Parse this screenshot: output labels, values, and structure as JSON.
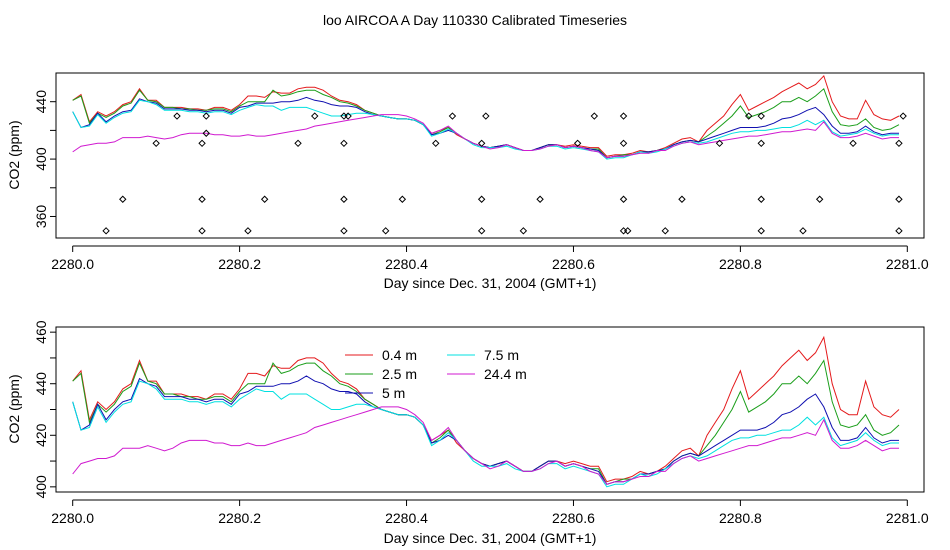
{
  "title": "loo AIRCOA A  Day 110330  Calibrated Timeseries",
  "chart_data": [
    {
      "type": "line+scatter",
      "xlabel": "Day since Dec. 31, 2004 (GMT+1)",
      "ylabel": "CO2 (ppm)",
      "xlim": [
        2279.98,
        2281.02
      ],
      "ylim": [
        345,
        460
      ],
      "x_ticks": [
        "2280.0",
        "2280.2",
        "2280.4",
        "2280.6",
        "2280.8",
        "2281.0"
      ],
      "y_ticks": [
        "360",
        "400",
        "440"
      ],
      "grid": false,
      "series_ref": "chart_data.1.series",
      "calibration_points": {
        "marker": "open-diamond",
        "x": [
          2280.04,
          2280.06,
          2280.1,
          2280.125,
          2280.155,
          2280.155,
          2280.155,
          2280.16,
          2280.16,
          2280.21,
          2280.23,
          2280.27,
          2280.29,
          2280.325,
          2280.325,
          2280.325,
          2280.325,
          2280.33,
          2280.375,
          2280.395,
          2280.435,
          2280.455,
          2280.49,
          2280.49,
          2280.49,
          2280.495,
          2280.54,
          2280.56,
          2280.605,
          2280.625,
          2280.66,
          2280.66,
          2280.66,
          2280.66,
          2280.665,
          2280.71,
          2280.73,
          2280.775,
          2280.81,
          2280.825,
          2280.825,
          2280.825,
          2280.825,
          2280.875,
          2280.895,
          2280.935,
          2280.99,
          2280.99,
          2280.99,
          2280.995
        ],
        "y": [
          350,
          372,
          411,
          430,
          350,
          372,
          411,
          430,
          418,
          350,
          372,
          411,
          430,
          350,
          372,
          411,
          430,
          430,
          350,
          372,
          411,
          430,
          350,
          372,
          411,
          430,
          350,
          372,
          411,
          430,
          350,
          372,
          411,
          430,
          350,
          350,
          372,
          411,
          430,
          350,
          372,
          411,
          430,
          350,
          372,
          411,
          350,
          372,
          411,
          430
        ]
      }
    },
    {
      "type": "line",
      "xlabel": "Day since Dec. 31, 2004 (GMT+1)",
      "ylabel": "CO2 (ppm)",
      "xlim": [
        2279.98,
        2281.02
      ],
      "ylim": [
        398,
        462
      ],
      "x_ticks": [
        "2280.0",
        "2280.2",
        "2280.4",
        "2280.6",
        "2280.8",
        "2281.0"
      ],
      "y_ticks": [
        "400",
        "420",
        "440",
        "460"
      ],
      "grid": false,
      "legend": {
        "position": "top-center",
        "entries": [
          {
            "name": "0.4 m",
            "color": "#e41a1c"
          },
          {
            "name": "2.5 m",
            "color": "#1a9e1a"
          },
          {
            "name": "5 m",
            "color": "#1010b0"
          },
          {
            "name": "7.5 m",
            "color": "#00e0e0"
          },
          {
            "name": "24.4 m",
            "color": "#d01ad0"
          }
        ]
      },
      "x": [
        2280.0,
        2280.01,
        2280.02,
        2280.03,
        2280.04,
        2280.05,
        2280.06,
        2280.07,
        2280.08,
        2280.09,
        2280.1,
        2280.11,
        2280.12,
        2280.13,
        2280.14,
        2280.15,
        2280.16,
        2280.17,
        2280.18,
        2280.19,
        2280.2,
        2280.21,
        2280.22,
        2280.23,
        2280.24,
        2280.25,
        2280.26,
        2280.27,
        2280.28,
        2280.29,
        2280.3,
        2280.31,
        2280.32,
        2280.33,
        2280.34,
        2280.35,
        2280.36,
        2280.37,
        2280.38,
        2280.39,
        2280.4,
        2280.41,
        2280.42,
        2280.43,
        2280.44,
        2280.45,
        2280.46,
        2280.47,
        2280.48,
        2280.49,
        2280.5,
        2280.51,
        2280.52,
        2280.53,
        2280.54,
        2280.55,
        2280.56,
        2280.57,
        2280.58,
        2280.59,
        2280.6,
        2280.61,
        2280.62,
        2280.63,
        2280.64,
        2280.65,
        2280.66,
        2280.67,
        2280.68,
        2280.69,
        2280.7,
        2280.71,
        2280.72,
        2280.73,
        2280.74,
        2280.75,
        2280.76,
        2280.77,
        2280.78,
        2280.79,
        2280.8,
        2280.81,
        2280.82,
        2280.83,
        2280.84,
        2280.85,
        2280.86,
        2280.87,
        2280.88,
        2280.89,
        2280.9,
        2280.91,
        2280.92,
        2280.93,
        2280.94,
        2280.95,
        2280.96,
        2280.97,
        2280.98,
        2280.99
      ],
      "series": [
        {
          "name": "0.4 m",
          "color": "#e41a1c",
          "values": [
            441,
            445,
            426,
            433,
            430,
            433,
            438,
            440,
            449,
            441,
            441,
            436,
            436,
            436,
            435,
            435,
            434,
            436,
            436,
            434,
            438,
            444,
            444,
            443,
            447,
            446,
            446,
            449,
            450,
            450,
            448,
            444,
            441,
            440,
            438,
            434,
            432,
            430,
            429,
            428,
            428,
            427,
            424,
            418,
            420,
            422,
            417,
            414,
            411,
            409,
            408,
            409,
            410,
            408,
            406,
            406,
            408,
            410,
            410,
            409,
            410,
            409,
            408,
            408,
            402,
            403,
            403,
            404,
            406,
            405,
            406,
            408,
            411,
            414,
            415,
            412,
            420,
            425,
            430,
            438,
            445,
            434,
            437,
            440,
            443,
            447,
            450,
            453,
            449,
            452,
            458,
            440,
            430,
            428,
            428,
            441,
            431,
            428,
            427,
            430
          ]
        },
        {
          "name": "2.5 m",
          "color": "#1a9e1a",
          "values": [
            441,
            444,
            425,
            432,
            429,
            432,
            437,
            439,
            448,
            441,
            440,
            436,
            436,
            435,
            435,
            434,
            434,
            435,
            435,
            433,
            437,
            440,
            440,
            440,
            448,
            444,
            445,
            447,
            448,
            448,
            445,
            443,
            440,
            439,
            437,
            434,
            432,
            430,
            429,
            428,
            428,
            427,
            424,
            417,
            419,
            422,
            418,
            414,
            411,
            409,
            408,
            409,
            410,
            408,
            406,
            406,
            408,
            410,
            410,
            408,
            409,
            408,
            407,
            407,
            401,
            402,
            403,
            403,
            405,
            405,
            406,
            407,
            410,
            412,
            413,
            412,
            416,
            420,
            425,
            430,
            437,
            429,
            431,
            433,
            436,
            440,
            440,
            443,
            440,
            444,
            449,
            433,
            424,
            423,
            424,
            428,
            422,
            420,
            421,
            424
          ]
        },
        {
          "name": "5 m",
          "color": "#1010b0",
          "values": [
            433,
            422,
            424,
            432,
            426,
            430,
            433,
            434,
            442,
            440,
            439,
            435,
            435,
            435,
            434,
            434,
            433,
            434,
            434,
            432,
            436,
            437,
            439,
            439,
            439,
            440,
            440,
            441,
            443,
            441,
            440,
            438,
            437,
            437,
            436,
            433,
            431,
            430,
            429,
            428,
            428,
            427,
            424,
            417,
            418,
            420,
            418,
            414,
            411,
            409,
            408,
            409,
            410,
            408,
            406,
            406,
            408,
            410,
            410,
            408,
            409,
            408,
            407,
            406,
            401,
            402,
            402,
            403,
            405,
            405,
            406,
            407,
            410,
            412,
            413,
            412,
            414,
            416,
            418,
            420,
            422,
            422,
            422,
            423,
            425,
            428,
            429,
            431,
            434,
            436,
            431,
            423,
            418,
            418,
            419,
            423,
            419,
            417,
            418,
            418
          ]
        },
        {
          "name": "7.5 m",
          "color": "#00e0e0",
          "values": [
            433,
            422,
            423,
            431,
            425,
            429,
            432,
            433,
            441,
            440,
            438,
            434,
            434,
            434,
            433,
            433,
            432,
            433,
            433,
            431,
            434,
            436,
            438,
            437,
            437,
            434,
            436,
            436,
            436,
            434,
            432,
            430,
            430,
            431,
            432,
            432,
            431,
            430,
            429,
            428,
            428,
            427,
            424,
            416,
            418,
            421,
            418,
            414,
            410,
            408,
            408,
            408,
            409,
            407,
            406,
            406,
            407,
            409,
            409,
            407,
            408,
            407,
            406,
            405,
            400,
            401,
            401,
            403,
            405,
            404,
            405,
            407,
            409,
            411,
            412,
            411,
            412,
            414,
            416,
            418,
            419,
            419,
            420,
            420,
            421,
            422,
            422,
            424,
            427,
            424,
            427,
            419,
            416,
            417,
            418,
            421,
            418,
            416,
            417,
            417
          ]
        },
        {
          "name": "24.4 m",
          "color": "#d01ad0",
          "values": [
            405,
            409,
            410,
            411,
            411,
            412,
            415,
            415,
            415,
            416,
            415,
            414,
            415,
            417,
            418,
            418,
            418,
            417,
            417,
            416,
            416,
            417,
            416,
            416,
            417,
            418,
            419,
            420,
            421,
            423,
            424,
            425,
            426,
            427,
            428,
            429,
            430,
            431,
            431,
            431,
            430,
            428,
            425,
            418,
            420,
            423,
            418,
            414,
            411,
            409,
            407,
            408,
            410,
            408,
            406,
            406,
            407,
            409,
            410,
            408,
            409,
            408,
            406,
            405,
            401,
            402,
            402,
            403,
            404,
            404,
            406,
            406,
            409,
            411,
            412,
            410,
            411,
            412,
            413,
            414,
            415,
            416,
            416,
            417,
            418,
            419,
            419,
            420,
            421,
            420,
            426,
            418,
            415,
            415,
            416,
            418,
            416,
            414,
            415,
            415
          ]
        }
      ]
    }
  ]
}
